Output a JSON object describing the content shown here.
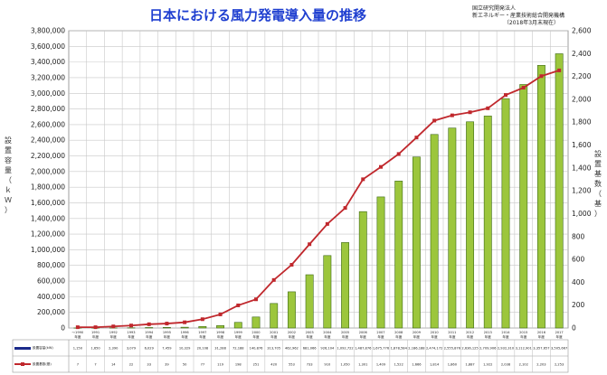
{
  "page": {
    "title": "日本における風力発電導入量の推移",
    "source_lines": [
      "国立研究開発法人",
      "新エネルギー・産業技術総合開発機構"
    ],
    "source_note": "（2018年3月末現在）"
  },
  "colors": {
    "bar": "#9cc63c",
    "bar_shade": "#3e6a17",
    "line": "#c0282d",
    "grid": "#c8c8c8"
  },
  "chart_data": {
    "type": "bar",
    "categories": [
      "～1990\n年度",
      "1991\n年度",
      "1992\n年度",
      "1993\n年度",
      "1994\n年度",
      "1995\n年度",
      "1996\n年度",
      "1997\n年度",
      "1998\n年度",
      "1999\n年度",
      "2000\n年度",
      "2001\n年度",
      "2002\n年度",
      "2003\n年度",
      "2004\n年度",
      "2005\n年度",
      "2006\n年度",
      "2007\n年度",
      "2008\n年度",
      "2009\n年度",
      "2010\n年度",
      "2011\n年度",
      "2012\n年度",
      "2013\n年度",
      "2014\n年度",
      "2015\n年度",
      "2016\n年度",
      "2017\n年度"
    ],
    "series": [
      {
        "name": "設置容量(kW)",
        "axis": "left",
        "values": [
          1150,
          1650,
          2390,
          3079,
          6029,
          7459,
          10329,
          20108,
          31288,
          72188,
          140876,
          313705,
          462962,
          681066,
          926104,
          1092722,
          1487876,
          1675776,
          1878584,
          2186188,
          2474172,
          2555876,
          2636125,
          2709906,
          2932310,
          3112901,
          3357657,
          3505667
        ]
      },
      {
        "name": "設置基数(基)",
        "axis": "right",
        "values": [
          7,
          7,
          14,
          22,
          33,
          39,
          50,
          77,
          119,
          198,
          251,
          420,
          553,
          733,
          910,
          1050,
          1301,
          1409,
          1522,
          1666,
          1814,
          1860,
          1887,
          1922,
          2038,
          2102,
          2203,
          2253
        ]
      }
    ],
    "table_rows": [
      [
        "1,150",
        "1,650",
        "2,390",
        "3,079",
        "6,029",
        "7,459",
        "10,329",
        "20,108",
        "31,288",
        "72,188",
        "140,876",
        "313,705",
        "462,962",
        "681,066",
        "926,104",
        "1,092,722",
        "1,487,876",
        "1,675,776",
        "1,878,584",
        "2,186,188",
        "2,474,172",
        "2,555,876",
        "2,636,125",
        "2,709,906",
        "2,932,310",
        "3,112,901",
        "3,357,657",
        "3,505,667"
      ],
      [
        "7",
        "7",
        "14",
        "22",
        "33",
        "39",
        "50",
        "77",
        "119",
        "198",
        "251",
        "420",
        "553",
        "733",
        "910",
        "1,050",
        "1,301",
        "1,409",
        "1,522",
        "1,666",
        "1,814",
        "1,860",
        "1,887",
        "1,922",
        "2,038",
        "2,102",
        "2,203",
        "2,253"
      ]
    ],
    "ylabel": "設置容量（ｋＷ）",
    "y2label": "設置基数（基）",
    "ylim": [
      0,
      3800000
    ],
    "y2lim": [
      0,
      2600
    ],
    "yticks": [
      "0",
      "200,000",
      "400,000",
      "600,000",
      "800,000",
      "1,000,000",
      "1,200,000",
      "1,400,000",
      "1,600,000",
      "1,800,000",
      "2,000,000",
      "2,200,000",
      "2,400,000",
      "2,600,000",
      "2,800,000",
      "3,000,000",
      "3,200,000",
      "3,400,000",
      "3,600,000",
      "3,800,000"
    ],
    "y2ticks": [
      "0",
      "200",
      "400",
      "600",
      "800",
      "1,000",
      "1,200",
      "1,400",
      "1,600",
      "1,800",
      "2,000",
      "2,200",
      "2,400",
      "2,600"
    ],
    "legend": [
      "設置容量(kW)",
      "設置基数(基)"
    ],
    "grid": true
  }
}
